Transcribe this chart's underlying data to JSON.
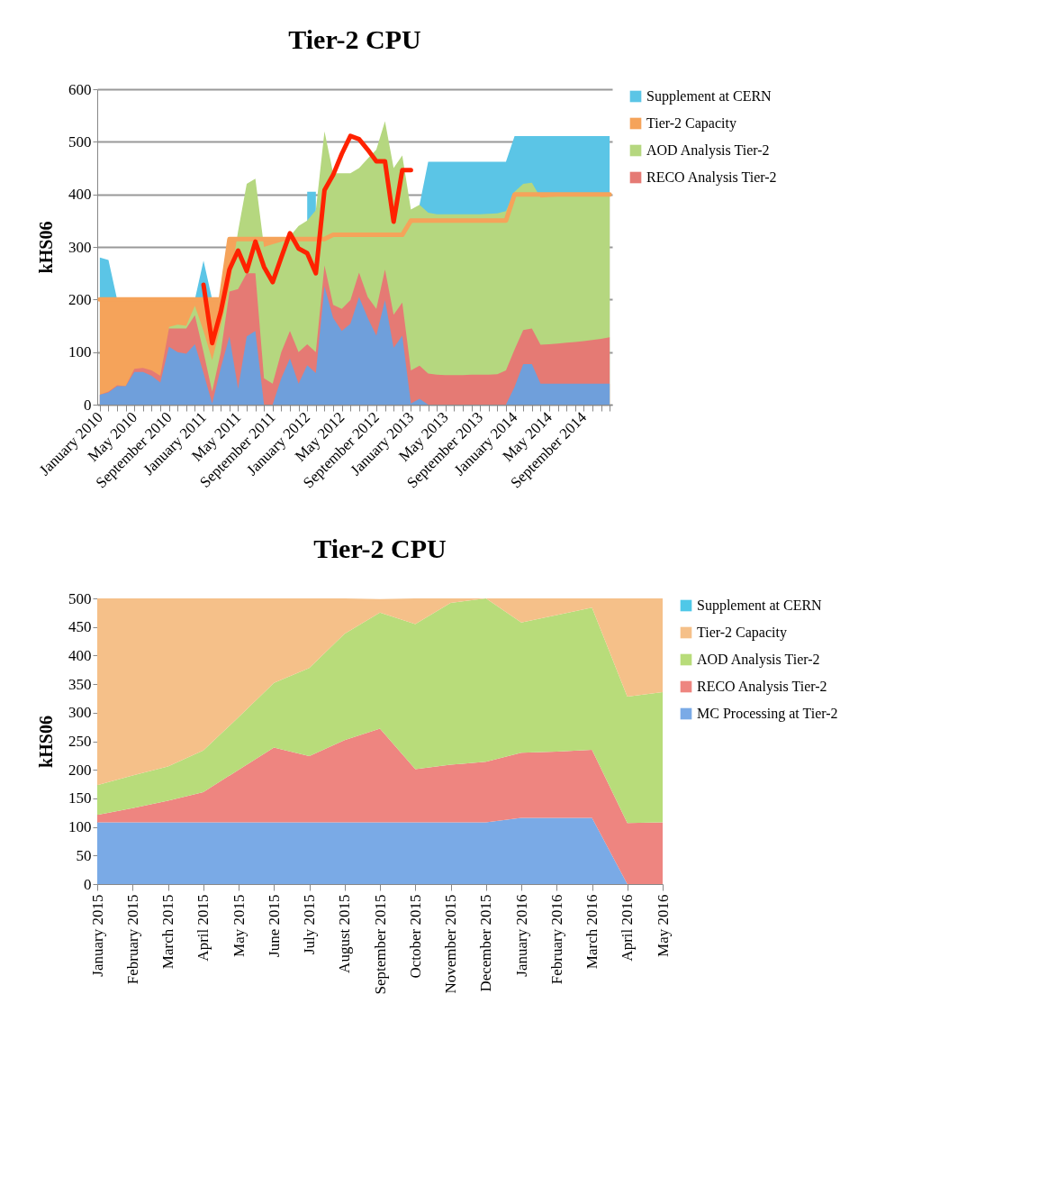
{
  "chart_data": [
    {
      "type": "area",
      "title": "Tier-2 CPU",
      "ylabel": "kHS06",
      "categories": [
        "January 2010",
        null,
        null,
        null,
        "May 2010",
        null,
        null,
        null,
        "September 2010",
        null,
        null,
        null,
        "January 2011",
        null,
        null,
        null,
        "May 2011",
        null,
        null,
        null,
        "September 2011",
        null,
        null,
        null,
        "January 2012",
        null,
        null,
        null,
        "May 2012",
        null,
        null,
        null,
        "September 2012",
        null,
        null,
        null,
        "January 2013",
        null,
        null,
        null,
        "May 2013",
        null,
        null,
        null,
        "September 2013",
        null,
        null,
        null,
        "January 2014",
        null,
        null,
        null,
        "May 2014",
        null,
        null,
        null,
        "September 2014",
        null,
        null,
        null
      ],
      "ylim": [
        0,
        600
      ],
      "yticks": [
        0,
        100,
        200,
        300,
        400,
        500,
        600
      ],
      "grid": "y",
      "legend": "right",
      "series": [
        {
          "name": "Supplement at CERN",
          "color": "#5bc5e6",
          "values": [
            280,
            275,
            200,
            null,
            null,
            null,
            null,
            null,
            null,
            null,
            null,
            200,
            274,
            200,
            null,
            null,
            null,
            null,
            null,
            null,
            null,
            null,
            null,
            null,
            405,
            405,
            null,
            null,
            null,
            null,
            null,
            null,
            null,
            null,
            null,
            null,
            null,
            380,
            462,
            462,
            462,
            462,
            462,
            462,
            462,
            462,
            462,
            462,
            511,
            511,
            511,
            511,
            511,
            511,
            511,
            511,
            511,
            511,
            511,
            511
          ]
        },
        {
          "name": "Tier-2 Capacity",
          "color": "#f5a35a",
          "line_style": "solid",
          "values": [
            200,
            200,
            200,
            200,
            200,
            200,
            200,
            200,
            200,
            200,
            200,
            200,
            200,
            200,
            200,
            315,
            315,
            315,
            315,
            315,
            315,
            315,
            315,
            315,
            315,
            315,
            315,
            323,
            323,
            323,
            323,
            323,
            323,
            323,
            323,
            323,
            350,
            350,
            350,
            350,
            350,
            350,
            350,
            350,
            350,
            350,
            350,
            350,
            400,
            400,
            400,
            400,
            400,
            400,
            400,
            400,
            400,
            400,
            400,
            400
          ]
        },
        {
          "name": "AOD Analysis Tier-2",
          "color": "#b5d77f",
          "values": [
            null,
            null,
            null,
            null,
            null,
            null,
            null,
            null,
            148,
            152,
            150,
            188,
            140,
            85,
            150,
            225,
            330,
            420,
            430,
            300,
            305,
            310,
            320,
            340,
            350,
            370,
            520,
            440,
            440,
            440,
            450,
            468,
            485,
            539,
            450,
            474,
            371,
            380,
            365,
            362,
            362,
            362,
            362,
            362,
            362,
            363,
            364,
            368,
            405,
            420,
            422,
            394,
            395,
            396,
            396,
            397,
            397,
            398,
            398,
            400
          ]
        },
        {
          "name": "RECO Analysis Tier-2",
          "color": "#e57a74",
          "values": [
            19,
            25,
            37,
            35,
            68,
            70,
            65,
            55,
            145,
            145,
            145,
            170,
            100,
            25,
            100,
            215,
            220,
            250,
            250,
            50,
            40,
            100,
            140,
            100,
            115,
            100,
            265,
            190,
            182,
            199,
            251,
            205,
            182,
            257,
            171,
            194,
            65,
            74,
            59,
            57,
            56,
            56,
            56,
            57,
            57,
            57,
            58,
            65,
            105,
            142,
            145,
            114,
            115,
            116,
            118,
            119,
            121,
            123,
            125,
            128
          ]
        },
        {
          "color": "#6f9fdb",
          "values": [
            19,
            23,
            35,
            35,
            62,
            62,
            55,
            42,
            110,
            100,
            97,
            115,
            60,
            2,
            70,
            130,
            30,
            130,
            140,
            0,
            0,
            50,
            88,
            40,
            75,
            60,
            225,
            165,
            140,
            154,
            205,
            165,
            131,
            199,
            108,
            131,
            2,
            11,
            0,
            0,
            0,
            0,
            0,
            0,
            0,
            0,
            0,
            0,
            34,
            77,
            77,
            40,
            40,
            40,
            40,
            40,
            40,
            40,
            40,
            40
          ]
        },
        {
          "color": "#ff2200",
          "type": "line",
          "values": [
            null,
            null,
            null,
            null,
            null,
            null,
            null,
            null,
            null,
            null,
            null,
            null,
            228,
            117,
            177,
            257,
            293,
            254,
            310,
            262,
            233,
            280,
            326,
            297,
            288,
            250,
            408,
            437,
            477,
            511,
            505,
            485,
            463,
            463,
            348,
            446,
            446,
            null,
            null,
            null,
            null,
            null,
            null,
            null,
            null,
            null,
            null,
            null,
            null,
            null,
            null,
            null,
            null,
            null,
            null,
            null,
            null,
            null,
            null,
            null
          ]
        }
      ]
    },
    {
      "type": "area",
      "title": "Tier-2 CPU",
      "ylabel": "kHS06",
      "stacked": true,
      "legend": "right",
      "categories": [
        "January 2015",
        "February 2015",
        "March 2015",
        "April 2015",
        "May 2015",
        "June 2015",
        "July 2015",
        "August 2015",
        "September 2015",
        "October 2015",
        "November 2015",
        "December 2015",
        "January 2016",
        "February 2016",
        "March 2016",
        "April 2016",
        "May 2016"
      ],
      "ylim": [
        0,
        500
      ],
      "yticks": [
        0,
        50,
        100,
        150,
        200,
        250,
        300,
        350,
        400,
        450,
        500
      ],
      "series": [
        {
          "name": "MC Processing at Tier-2",
          "color": "#7aaae6",
          "values": [
            108,
            108,
            108,
            108,
            108,
            108,
            108,
            108,
            108,
            108,
            108,
            108,
            116,
            116,
            116,
            0,
            0
          ]
        },
        {
          "name": "RECO Analysis Tier-2",
          "color": "#ee8580",
          "values": [
            13,
            25,
            38,
            53,
            92,
            131,
            116,
            144,
            164,
            93,
            101,
            106,
            114,
            116,
            119,
            107,
            108
          ]
        },
        {
          "name": "AOD Analysis Tier-2",
          "color": "#b8dc7a",
          "values": [
            52,
            57,
            60,
            73,
            92,
            113,
            154,
            186,
            203,
            254,
            283,
            286,
            228,
            239,
            249,
            221,
            228
          ]
        },
        {
          "name": "Tier-2 Capacity",
          "color": "#f5c089",
          "values": [
            327,
            310,
            294,
            266,
            208,
            148,
            122,
            62,
            24,
            45,
            8,
            0,
            42,
            29,
            16,
            172,
            164
          ]
        },
        {
          "name": "Supplement at CERN",
          "color": "#4fc8e8",
          "values": [
            null,
            null,
            null,
            null,
            null,
            null,
            null,
            null,
            null,
            null,
            null,
            null,
            null,
            null,
            null,
            null,
            null
          ]
        }
      ]
    }
  ]
}
